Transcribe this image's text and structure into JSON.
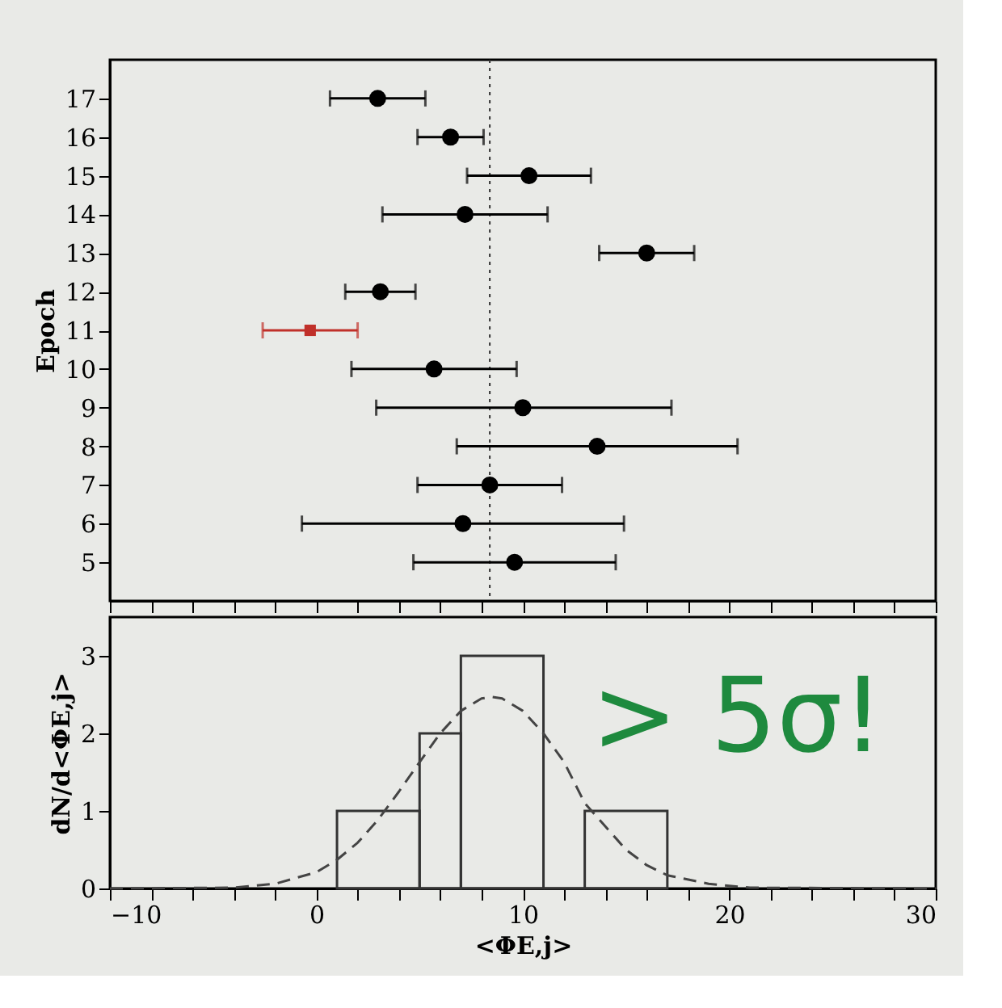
{
  "chart_data": [
    {
      "type": "scatter",
      "ylabel": "Epoch",
      "xlim": [
        -10,
        30
      ],
      "ylim": [
        4,
        18
      ],
      "xticks": [
        -10,
        {
          "value": -8,
          "label": null
        },
        {
          "value": -6,
          "label": null
        },
        {
          "value": -4,
          "label": null
        },
        {
          "value": -2,
          "label": null
        },
        0,
        {
          "value": 2,
          "label": null
        },
        {
          "value": 4,
          "label": null
        },
        {
          "value": 6,
          "label": null
        },
        {
          "value": 8,
          "label": null
        },
        10,
        {
          "value": 12,
          "label": null
        },
        {
          "value": 14,
          "label": null
        },
        {
          "value": 16,
          "label": null
        },
        {
          "value": 18,
          "label": null
        },
        20,
        {
          "value": 22,
          "label": null
        },
        {
          "value": 24,
          "label": null
        },
        {
          "value": 26,
          "label": null
        },
        {
          "value": 28,
          "label": null
        },
        30
      ],
      "yticks": [
        5,
        6,
        7,
        8,
        9,
        10,
        11,
        12,
        13,
        14,
        15,
        16,
        17
      ],
      "tick_labels": "y",
      "grid": false,
      "series": [
        {
          "color": "#000000",
          "marker": "circle",
          "x": [
            2.97,
            6.5,
            10.3,
            7.2,
            16.0,
            3.1,
            5.7,
            10.0,
            13.6,
            8.4,
            7.1,
            9.6
          ],
          "values": [
            17,
            16,
            15,
            14,
            13,
            12,
            10,
            9,
            8,
            7,
            6,
            5
          ],
          "xerrors": [
            [
              0.66,
              5.28
            ],
            [
              4.9,
              8.1
            ],
            [
              7.3,
              13.3
            ],
            [
              3.2,
              11.2
            ],
            [
              13.7,
              18.3
            ],
            [
              1.4,
              4.8
            ],
            [
              1.7,
              9.7
            ],
            [
              2.9,
              17.2
            ],
            [
              6.8,
              20.4
            ],
            [
              4.9,
              11.9
            ],
            [
              -0.7,
              14.9
            ],
            [
              4.7,
              14.5
            ]
          ]
        },
        {
          "color": "#c0302a",
          "marker": "square",
          "x": [
            -0.3
          ],
          "values": [
            11
          ],
          "xerrors": [
            [
              -2.6,
              2.0
            ]
          ]
        }
      ],
      "ref_lines": [
        {
          "axis": "x",
          "value": 8.4,
          "line_style": "dotted",
          "color": "#333333"
        }
      ]
    },
    {
      "type": "histogram",
      "xlabel": "<ΦE,j>",
      "ylabel": "dN/d<ΦE,j>",
      "xlim": [
        -10,
        30
      ],
      "ylim": [
        0,
        3.5
      ],
      "xticks": [
        {
          "value": -10,
          "label": "−10"
        },
        {
          "value": -8,
          "label": null
        },
        {
          "value": -6,
          "label": null
        },
        {
          "value": -4,
          "label": null
        },
        {
          "value": -2,
          "label": null
        },
        0,
        {
          "value": 2,
          "label": null
        },
        {
          "value": 4,
          "label": null
        },
        {
          "value": 6,
          "label": null
        },
        {
          "value": 8,
          "label": null
        },
        10,
        {
          "value": 12,
          "label": null
        },
        {
          "value": 14,
          "label": null
        },
        {
          "value": 16,
          "label": null
        },
        {
          "value": 18,
          "label": null
        },
        20,
        {
          "value": 22,
          "label": null
        },
        {
          "value": 24,
          "label": null
        },
        {
          "value": 26,
          "label": null
        },
        {
          "value": 28,
          "label": null
        },
        30
      ],
      "yticks": [
        0,
        1,
        2,
        3
      ],
      "grid": false,
      "bins": [
        1,
        5,
        7,
        11,
        13,
        17
      ],
      "values": [
        1,
        2,
        3,
        0,
        1
      ],
      "color": "#333333",
      "series": [
        {
          "type": "line",
          "line_style": "dashed",
          "color": "#444444",
          "x": [
            -10,
            -4,
            -2,
            0,
            1,
            2,
            3,
            4,
            5,
            6,
            7,
            8,
            8.5,
            9,
            10,
            11,
            12,
            13,
            14,
            15,
            16,
            17,
            19,
            21,
            30
          ],
          "values": [
            0,
            0.01,
            0.06,
            0.21,
            0.37,
            0.59,
            0.89,
            1.25,
            1.63,
            2.0,
            2.29,
            2.45,
            2.47,
            2.45,
            2.29,
            2.0,
            1.63,
            1.1,
            0.8,
            0.5,
            0.3,
            0.17,
            0.06,
            0.01,
            0
          ]
        }
      ],
      "annotations": [
        "> 5σ!"
      ]
    }
  ]
}
